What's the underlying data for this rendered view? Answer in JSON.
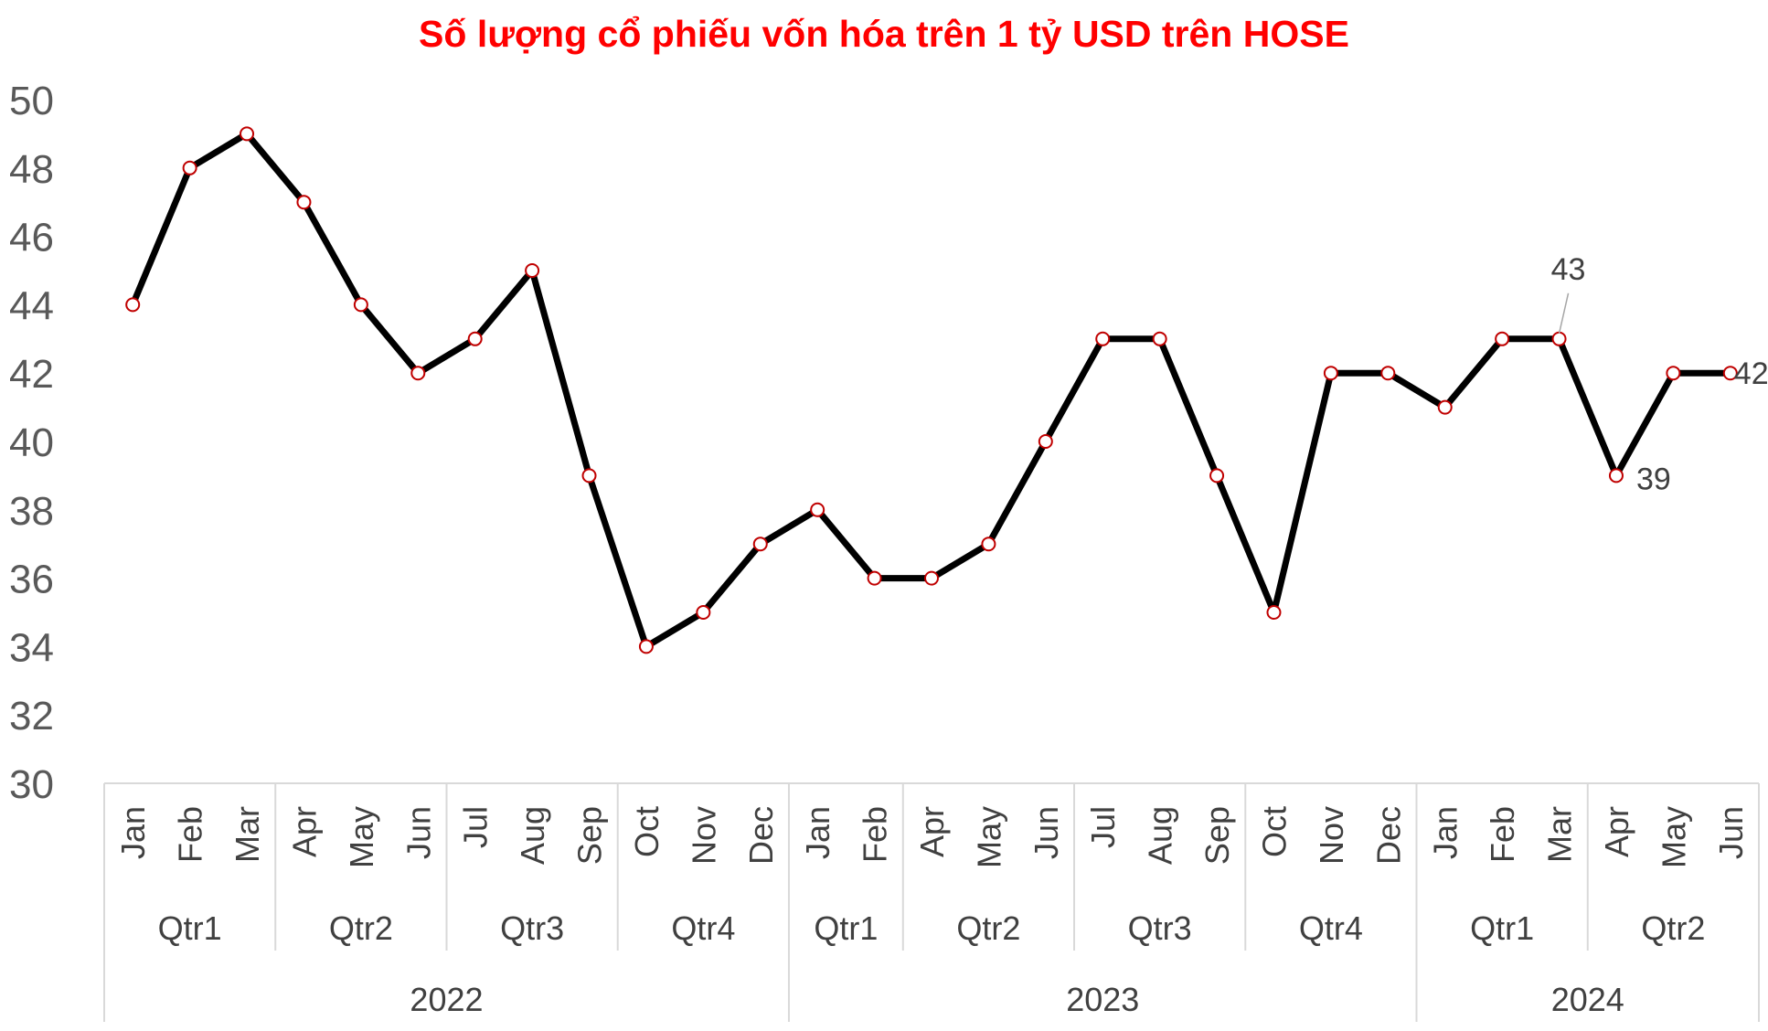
{
  "chart_data": {
    "type": "line",
    "title": "Số lượng cổ phiếu vốn hóa trên 1 tỷ USD trên HOSE",
    "xlabel": "",
    "ylabel": "",
    "ylim": [
      30,
      50
    ],
    "yticks": [
      30,
      32,
      34,
      36,
      38,
      40,
      42,
      44,
      46,
      48,
      50
    ],
    "grid": false,
    "legend": "none",
    "line_color": "#000000",
    "marker_fill": "#ffffff",
    "marker_edge": "#c00000",
    "categories": [
      "Jan",
      "Feb",
      "Mar",
      "Apr",
      "May",
      "Jun",
      "Jul",
      "Aug",
      "Sep",
      "Oct",
      "Nov",
      "Dec",
      "Jan",
      "Feb",
      "Apr",
      "May",
      "Jun",
      "Jul",
      "Aug",
      "Sep",
      "Oct",
      "Nov",
      "Dec",
      "Jan",
      "Feb",
      "Mar",
      "Apr",
      "May",
      "Jun"
    ],
    "quarters": [
      {
        "label": "Qtr1",
        "start": 0,
        "count": 3
      },
      {
        "label": "Qtr2",
        "start": 3,
        "count": 3
      },
      {
        "label": "Qtr3",
        "start": 6,
        "count": 3
      },
      {
        "label": "Qtr4",
        "start": 9,
        "count": 3
      },
      {
        "label": "Qtr1",
        "start": 12,
        "count": 2
      },
      {
        "label": "Qtr2",
        "start": 14,
        "count": 3
      },
      {
        "label": "Qtr3",
        "start": 17,
        "count": 3
      },
      {
        "label": "Qtr4",
        "start": 20,
        "count": 3
      },
      {
        "label": "Qtr1",
        "start": 23,
        "count": 3
      },
      {
        "label": "Qtr2",
        "start": 26,
        "count": 3
      }
    ],
    "years": [
      {
        "label": "2022",
        "start": 0,
        "count": 12
      },
      {
        "label": "2023",
        "start": 12,
        "count": 11
      },
      {
        "label": "2024",
        "start": 23,
        "count": 6
      }
    ],
    "series": [
      {
        "values": [
          44,
          48,
          49,
          47,
          44,
          42,
          43,
          45,
          39,
          34,
          35,
          37,
          38,
          36,
          36,
          37,
          40,
          43,
          43,
          39,
          35,
          42,
          42,
          41,
          43,
          43,
          39,
          42,
          42
        ]
      }
    ],
    "data_labels": [
      {
        "index": 25,
        "text": "43"
      },
      {
        "index": 26,
        "text": "39"
      },
      {
        "index": 28,
        "text": "42"
      }
    ]
  }
}
